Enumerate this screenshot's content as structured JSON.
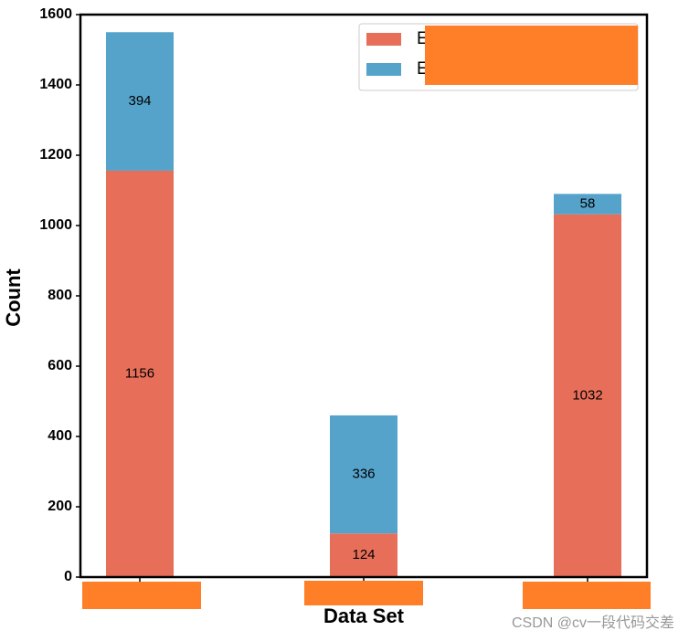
{
  "chart_data": {
    "type": "stacked_bar",
    "xlabel": "Data Set",
    "ylabel": "Count",
    "categories": [
      null,
      null,
      null
    ],
    "series": [
      {
        "name": "E",
        "color": "#e76f5a",
        "values": [
          1156,
          124,
          1032
        ]
      },
      {
        "name": "E",
        "color": "#55a3cb",
        "values": [
          394,
          336,
          58
        ]
      }
    ],
    "ylim": [
      0,
      1600
    ],
    "yticks": [
      0,
      200,
      400,
      600,
      800,
      1000,
      1200,
      1400,
      1600
    ],
    "legend": "upper right",
    "annotations": [
      "CSDN @cv一段代码交差"
    ]
  }
}
